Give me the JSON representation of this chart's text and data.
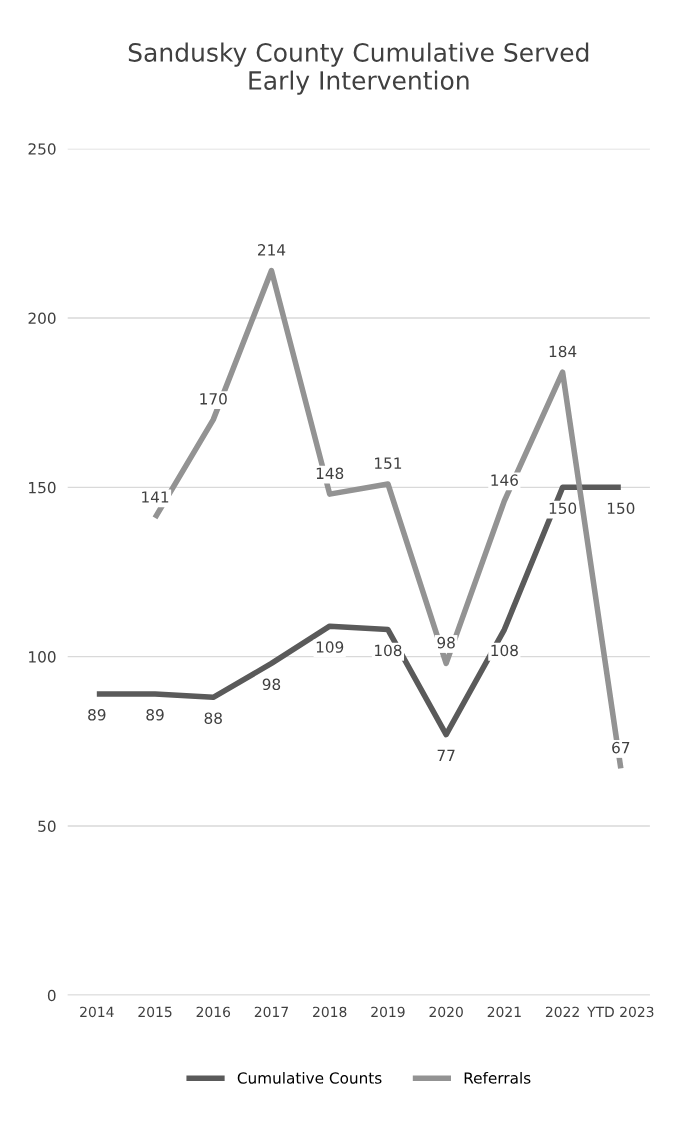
{
  "chart_data": {
    "type": "line",
    "title": "Sandusky County Cumulative Served\nEarly Intervention",
    "categories": [
      "2014",
      "2015",
      "2016",
      "2017",
      "2018",
      "2019",
      "2020",
      "2021",
      "2022",
      "YTD 2023"
    ],
    "series": [
      {
        "name": "Cumulative Counts",
        "color": "#5a5a5a",
        "values": [
          89,
          89,
          88,
          98,
          109,
          108,
          77,
          108,
          150,
          150
        ]
      },
      {
        "name": "Referrals",
        "color": "#939393",
        "values": [
          null,
          141,
          170,
          214,
          148,
          151,
          98,
          146,
          184,
          67
        ]
      }
    ],
    "ylim": [
      0,
      250
    ],
    "yticks": [
      0,
      50,
      100,
      150,
      200,
      250
    ],
    "grid": "y",
    "legend": "bottom",
    "data_labels": true,
    "marker": "none",
    "line_style": "solid"
  }
}
